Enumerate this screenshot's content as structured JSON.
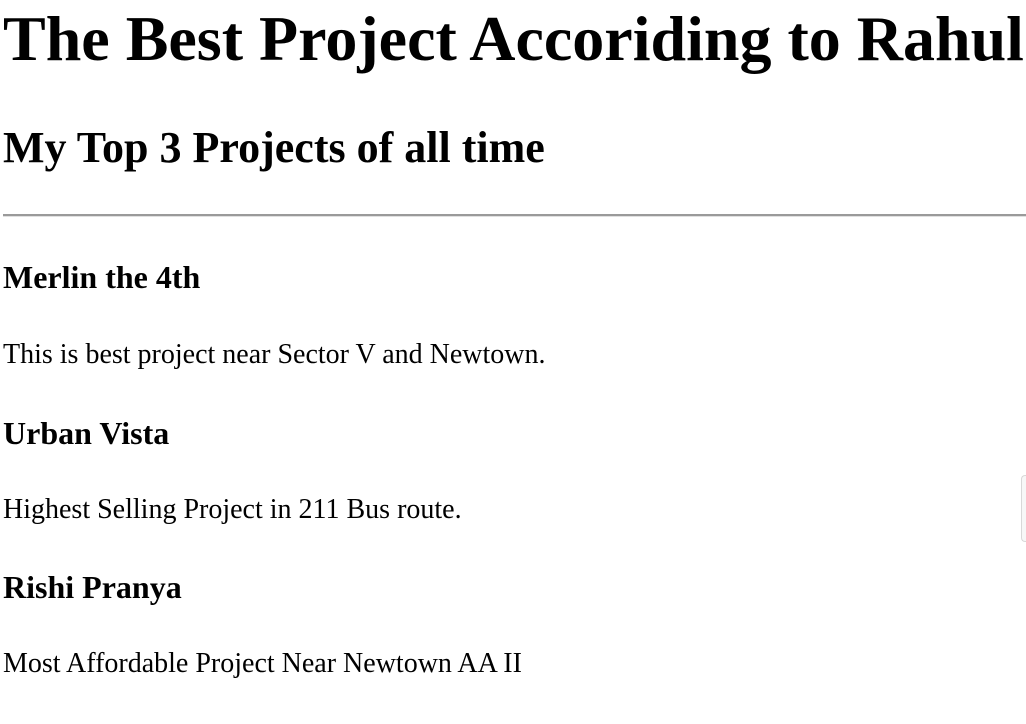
{
  "page": {
    "title": "The Best Project Accoriding to Rahul",
    "subtitle": "My Top 3 Projects of all time"
  },
  "projects": [
    {
      "name": "Merlin the 4th",
      "description": "This is best project near Sector V and Newtown."
    },
    {
      "name": "Urban Vista",
      "description": "Highest Selling Project in 211 Bus route."
    },
    {
      "name": "Rishi Pranya",
      "description": "Most Affordable Project Near Newtown AA II"
    }
  ]
}
